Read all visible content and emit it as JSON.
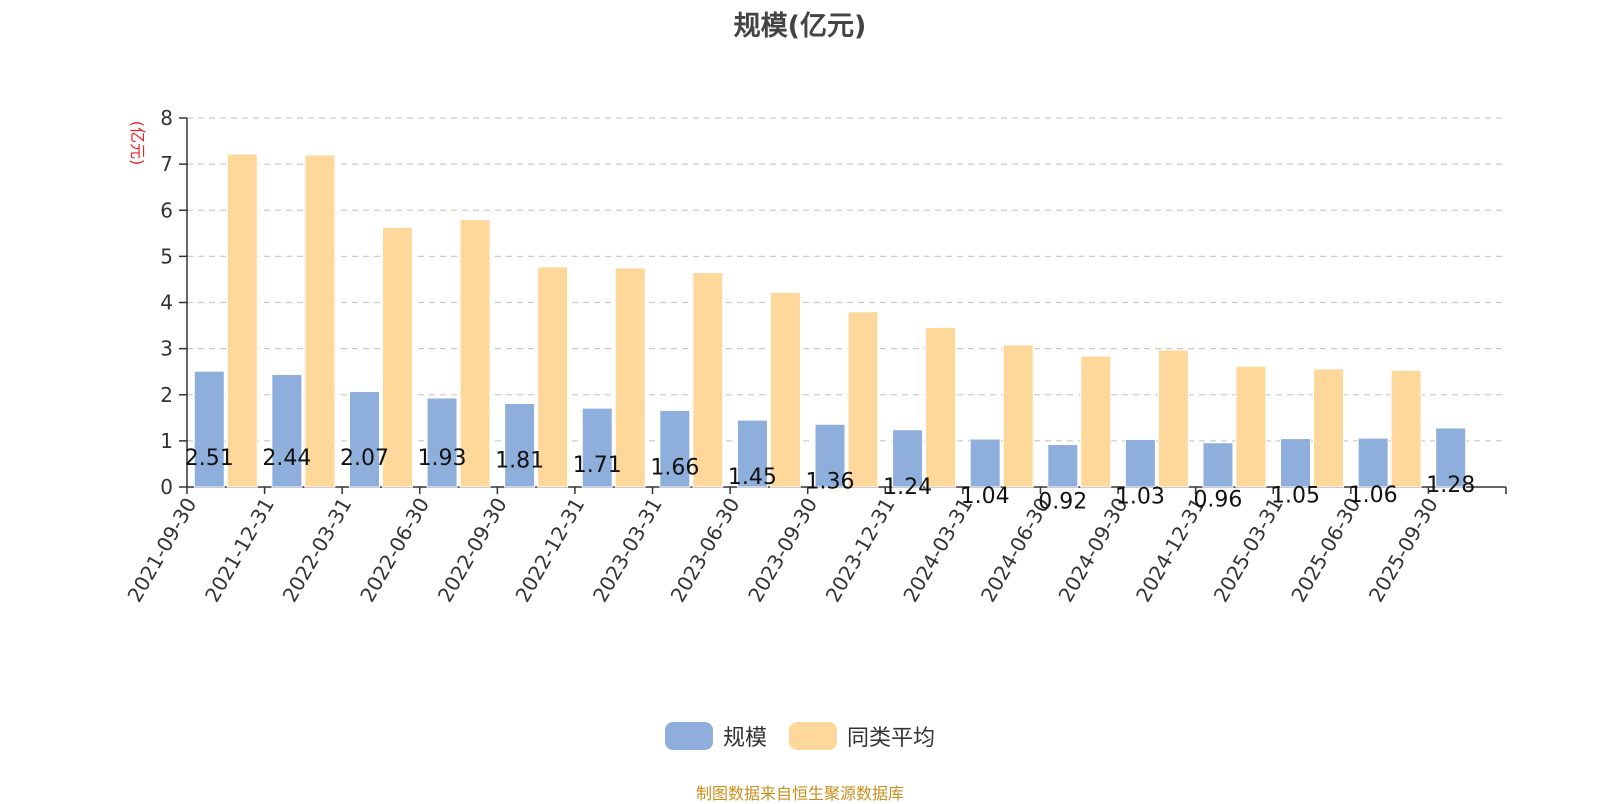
{
  "chart_data": {
    "type": "bar",
    "title": "规模(亿元)",
    "ylabel": "(亿元)",
    "xlabel": "",
    "ylim": [
      0,
      8
    ],
    "yticks": [
      0,
      1,
      2,
      3,
      4,
      5,
      6,
      7,
      8
    ],
    "grid": true,
    "legend_position": "bottom-center",
    "categories": [
      "2021-09-30",
      "2021-12-31",
      "2022-03-31",
      "2022-06-30",
      "2022-09-30",
      "2022-12-31",
      "2023-03-31",
      "2023-06-30",
      "2023-09-30",
      "2023-12-31",
      "2024-03-31",
      "2024-06-30",
      "2024-09-30",
      "2024-12-31",
      "2025-03-31",
      "2025-06-30",
      "2025-09-30"
    ],
    "series": [
      {
        "name": "规模",
        "color": "#8eaedc",
        "values": [
          2.51,
          2.44,
          2.07,
          1.93,
          1.81,
          1.71,
          1.66,
          1.45,
          1.36,
          1.24,
          1.04,
          0.92,
          1.03,
          0.96,
          1.05,
          1.06,
          1.28
        ],
        "show_labels": true
      },
      {
        "name": "同类平均",
        "color": "#fdd89a",
        "values": [
          7.22,
          7.2,
          5.63,
          5.8,
          4.77,
          4.75,
          4.65,
          4.22,
          3.8,
          3.46,
          3.08,
          2.84,
          2.97,
          2.62,
          2.56,
          2.53,
          null
        ],
        "show_labels": false
      }
    ]
  },
  "y_unit_color": "#e8262a",
  "source": "制图数据来自恒生聚源数据库"
}
